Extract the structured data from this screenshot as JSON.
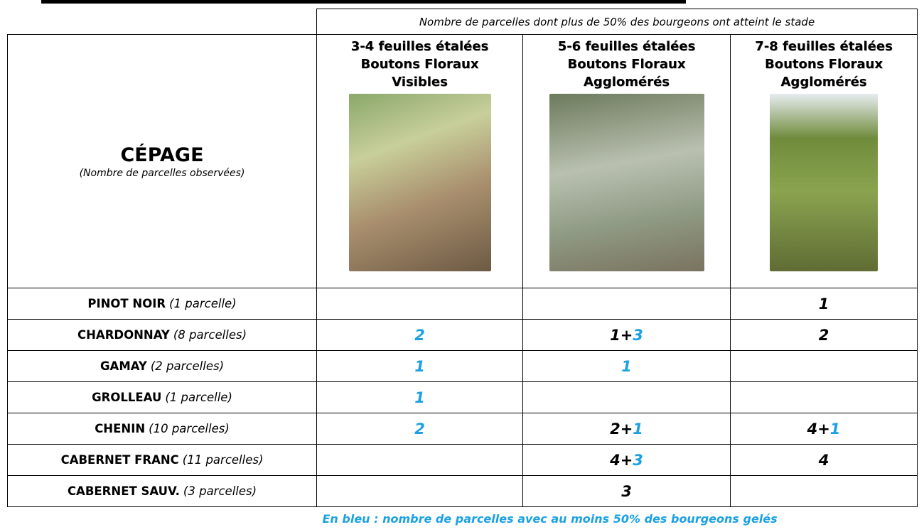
{
  "header": {
    "note": "Nombre de parcelles dont plus de 50% des bourgeons ont atteint le stade",
    "cepage": "CÉPAGE",
    "cepage_sub": "(Nombre de parcelles observées)",
    "stages": [
      [
        "3-4 feuilles étalées",
        "Boutons Floraux",
        "Visibles"
      ],
      [
        "5-6 feuilles étalées",
        "Boutons Floraux",
        "Agglomérés"
      ],
      [
        "7-8 feuilles étalées",
        "Boutons Floraux",
        "Agglomérés"
      ]
    ]
  },
  "rows": [
    {
      "name": "PINOT NOIR",
      "count": "(1 parcelle)",
      "cells": [
        [],
        [],
        [
          {
            "text": "1",
            "color": "#000000"
          }
        ]
      ]
    },
    {
      "name": "CHARDONNAY",
      "count": "(8 parcelles)",
      "cells": [
        [
          {
            "text": "2",
            "color": "#1ba1e2"
          }
        ],
        [
          {
            "text": "1",
            "color": "#000000"
          },
          {
            "text": "+",
            "color": "#000000"
          },
          {
            "text": "3",
            "color": "#1ba1e2"
          }
        ],
        [
          {
            "text": "2",
            "color": "#000000"
          }
        ]
      ]
    },
    {
      "name": "GAMAY",
      "count": "(2 parcelles)",
      "cells": [
        [
          {
            "text": "1",
            "color": "#1ba1e2"
          }
        ],
        [
          {
            "text": "1",
            "color": "#1ba1e2"
          }
        ],
        []
      ]
    },
    {
      "name": "GROLLEAU",
      "count": "(1 parcelle)",
      "cells": [
        [
          {
            "text": "1",
            "color": "#1ba1e2"
          }
        ],
        [],
        []
      ]
    },
    {
      "name": "CHENIN",
      "count": "(10 parcelles)",
      "cells": [
        [
          {
            "text": "2",
            "color": "#1ba1e2"
          }
        ],
        [
          {
            "text": "2",
            "color": "#000000"
          },
          {
            "text": "+",
            "color": "#000000"
          },
          {
            "text": "1",
            "color": "#1ba1e2"
          }
        ],
        [
          {
            "text": "4",
            "color": "#000000"
          },
          {
            "text": "+",
            "color": "#000000"
          },
          {
            "text": "1",
            "color": "#1ba1e2"
          }
        ]
      ]
    },
    {
      "name": "CABERNET FRANC",
      "count": "(11 parcelles)",
      "cells": [
        [],
        [
          {
            "text": "4",
            "color": "#000000"
          },
          {
            "text": "+",
            "color": "#000000"
          },
          {
            "text": "3",
            "color": "#1ba1e2"
          }
        ],
        [
          {
            "text": "4",
            "color": "#000000"
          }
        ]
      ]
    },
    {
      "name": "CABERNET SAUV.",
      "count": "(3 parcelles)",
      "cells": [
        [],
        [
          {
            "text": "3",
            "color": "#000000"
          }
        ],
        []
      ]
    }
  ],
  "footer": "En bleu : nombre de parcelles avec au moins 50% des bourgeons gelés"
}
